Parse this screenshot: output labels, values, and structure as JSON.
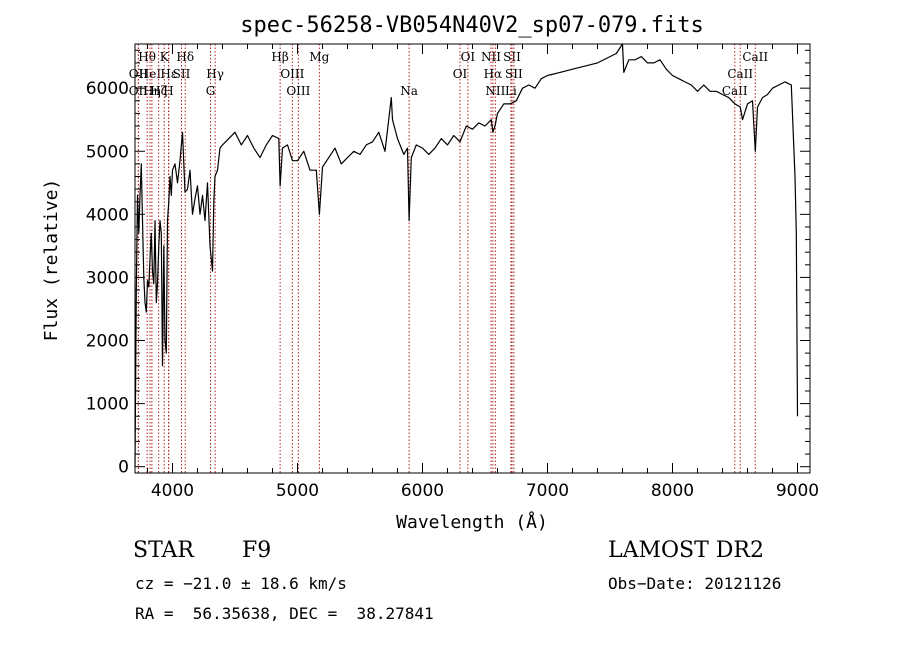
{
  "chart_data": {
    "type": "line",
    "title": "spec-56258-VB054N40V2_sp07-079.fits",
    "xlabel": "Wavelength (Å)",
    "ylabel": "Flux (relative)",
    "xlim": [
      3700,
      9100
    ],
    "ylim": [
      -100,
      6700
    ],
    "xticks": [
      4000,
      5000,
      6000,
      7000,
      8000,
      9000
    ],
    "xtick_labels": [
      "4000",
      "5000",
      "6000",
      "7000",
      "8000",
      "9000"
    ],
    "yticks": [
      0,
      1000,
      2000,
      3000,
      4000,
      5000,
      6000
    ],
    "ytick_labels": [
      "0",
      "1000",
      "2000",
      "3000",
      "4000",
      "5000",
      "6000"
    ],
    "series": [
      {
        "color": "#000000",
        "x": [
          3700,
          3710,
          3720,
          3730,
          3740,
          3750,
          3760,
          3770,
          3780,
          3790,
          3800,
          3810,
          3820,
          3830,
          3840,
          3850,
          3860,
          3870,
          3880,
          3890,
          3900,
          3910,
          3920,
          3930,
          3940,
          3950,
          3960,
          3970,
          3980,
          3990,
          4000,
          4020,
          4040,
          4060,
          4080,
          4100,
          4120,
          4140,
          4160,
          4180,
          4200,
          4220,
          4240,
          4260,
          4280,
          4300,
          4320,
          4330,
          4340,
          4360,
          4380,
          4400,
          4450,
          4500,
          4550,
          4600,
          4650,
          4700,
          4750,
          4800,
          4850,
          4861,
          4880,
          4920,
          4960,
          5000,
          5050,
          5100,
          5150,
          5175,
          5200,
          5250,
          5300,
          5350,
          5400,
          5450,
          5500,
          5550,
          5600,
          5650,
          5700,
          5750,
          5760,
          5800,
          5850,
          5880,
          5893,
          5910,
          5950,
          6000,
          6050,
          6100,
          6150,
          6200,
          6250,
          6300,
          6350,
          6400,
          6450,
          6500,
          6550,
          6563,
          6580,
          6600,
          6650,
          6700,
          6750,
          6800,
          6850,
          6900,
          6950,
          7000,
          7100,
          7200,
          7300,
          7400,
          7500,
          7550,
          7600,
          7610,
          7650,
          7700,
          7750,
          7800,
          7850,
          7900,
          7950,
          8000,
          8050,
          8100,
          8150,
          8200,
          8250,
          8300,
          8350,
          8400,
          8450,
          8500,
          8542,
          8560,
          8600,
          8640,
          8662,
          8680,
          8720,
          8760,
          8800,
          8850,
          8900,
          8950,
          8980,
          8990,
          9000
        ],
        "y": [
          0,
          2800,
          4300,
          3700,
          4300,
          4800,
          3900,
          3000,
          2600,
          2450,
          2950,
          2850,
          3300,
          3700,
          3100,
          2900,
          3900,
          2600,
          2900,
          3500,
          3900,
          3700,
          1600,
          3500,
          2000,
          1800,
          3900,
          4200,
          4600,
          4300,
          4700,
          4800,
          4500,
          4850,
          5300,
          4350,
          4400,
          4700,
          4000,
          4250,
          4450,
          4000,
          4300,
          3900,
          4500,
          3500,
          3100,
          4200,
          4600,
          4700,
          5050,
          5100,
          5200,
          5300,
          5100,
          5250,
          5050,
          4900,
          5100,
          5250,
          5200,
          4450,
          5050,
          5100,
          4850,
          4850,
          5000,
          4700,
          4700,
          4000,
          4750,
          4900,
          5050,
          4800,
          4900,
          5000,
          4950,
          5100,
          5150,
          5300,
          5000,
          5850,
          5500,
          5200,
          4950,
          5050,
          3900,
          4900,
          5100,
          5050,
          4950,
          5050,
          5200,
          5100,
          5250,
          5150,
          5400,
          5350,
          5450,
          5400,
          5500,
          5300,
          5400,
          5600,
          5750,
          5750,
          5800,
          6000,
          6050,
          6000,
          6150,
          6200,
          6250,
          6300,
          6350,
          6400,
          6500,
          6550,
          6700,
          6250,
          6450,
          6450,
          6500,
          6400,
          6400,
          6450,
          6300,
          6200,
          6150,
          6100,
          6050,
          5950,
          6050,
          5950,
          5950,
          5900,
          5850,
          5750,
          5700,
          5500,
          5750,
          5800,
          5000,
          5700,
          5850,
          5900,
          6000,
          6050,
          6100,
          6050,
          4600,
          3700,
          800
        ]
      }
    ]
  },
  "lines": [
    {
      "wl": 3797,
      "label": "Hθ",
      "row": 0
    },
    {
      "wl": 3727,
      "label": "OII",
      "row": 1
    },
    {
      "wl": 3820,
      "label": "HeI",
      "row": 1
    },
    {
      "wl": 3727,
      "label": "OII",
      "row": 2
    },
    {
      "wl": 3835,
      "label": "Hη",
      "row": 2
    },
    {
      "wl": 3889,
      "label": "Hζ",
      "row": 2
    },
    {
      "wl": 3934,
      "label": "K",
      "row": 0
    },
    {
      "wl": 3968,
      "label": "H",
      "row": 2
    },
    {
      "wl": 3970,
      "label": "Hε",
      "row": 1
    },
    {
      "wl": 4072,
      "label": "SII",
      "row": 1
    },
    {
      "wl": 4102,
      "label": "Hδ",
      "row": 0
    },
    {
      "wl": 4304,
      "label": "G",
      "row": 2
    },
    {
      "wl": 4341,
      "label": "Hγ",
      "row": 1
    },
    {
      "wl": 4861,
      "label": "Hβ",
      "row": 0
    },
    {
      "wl": 4959,
      "label": "OIII",
      "row": 1
    },
    {
      "wl": 5007,
      "label": "OIII",
      "row": 2
    },
    {
      "wl": 5175,
      "label": "Mg",
      "row": 0
    },
    {
      "wl": 5893,
      "label": "Na",
      "row": 2
    },
    {
      "wl": 6300,
      "label": "OI",
      "row": 1
    },
    {
      "wl": 6363,
      "label": "OI",
      "row": 0
    },
    {
      "wl": 6548,
      "label": "NII",
      "row": 0
    },
    {
      "wl": 6563,
      "label": "Hα",
      "row": 1
    },
    {
      "wl": 6583,
      "label": "NII",
      "row": 2
    },
    {
      "wl": 6707,
      "label": "Li",
      "row": 2
    },
    {
      "wl": 6716,
      "label": "SII",
      "row": 0
    },
    {
      "wl": 6731,
      "label": "SII",
      "row": 1
    },
    {
      "wl": 8498,
      "label": "CaII",
      "row": 2
    },
    {
      "wl": 8542,
      "label": "CaII",
      "row": 1
    },
    {
      "wl": 8662,
      "label": "CaII",
      "row": 0
    }
  ],
  "info": {
    "class": "STAR",
    "subclass": "F9",
    "survey": "LAMOST DR2",
    "cz": "cz = −21.0 ± 18.6 km/s",
    "obs_date": "Obs−Date: 20121126",
    "radec": "RA =  56.35638, DEC =  38.27841"
  }
}
